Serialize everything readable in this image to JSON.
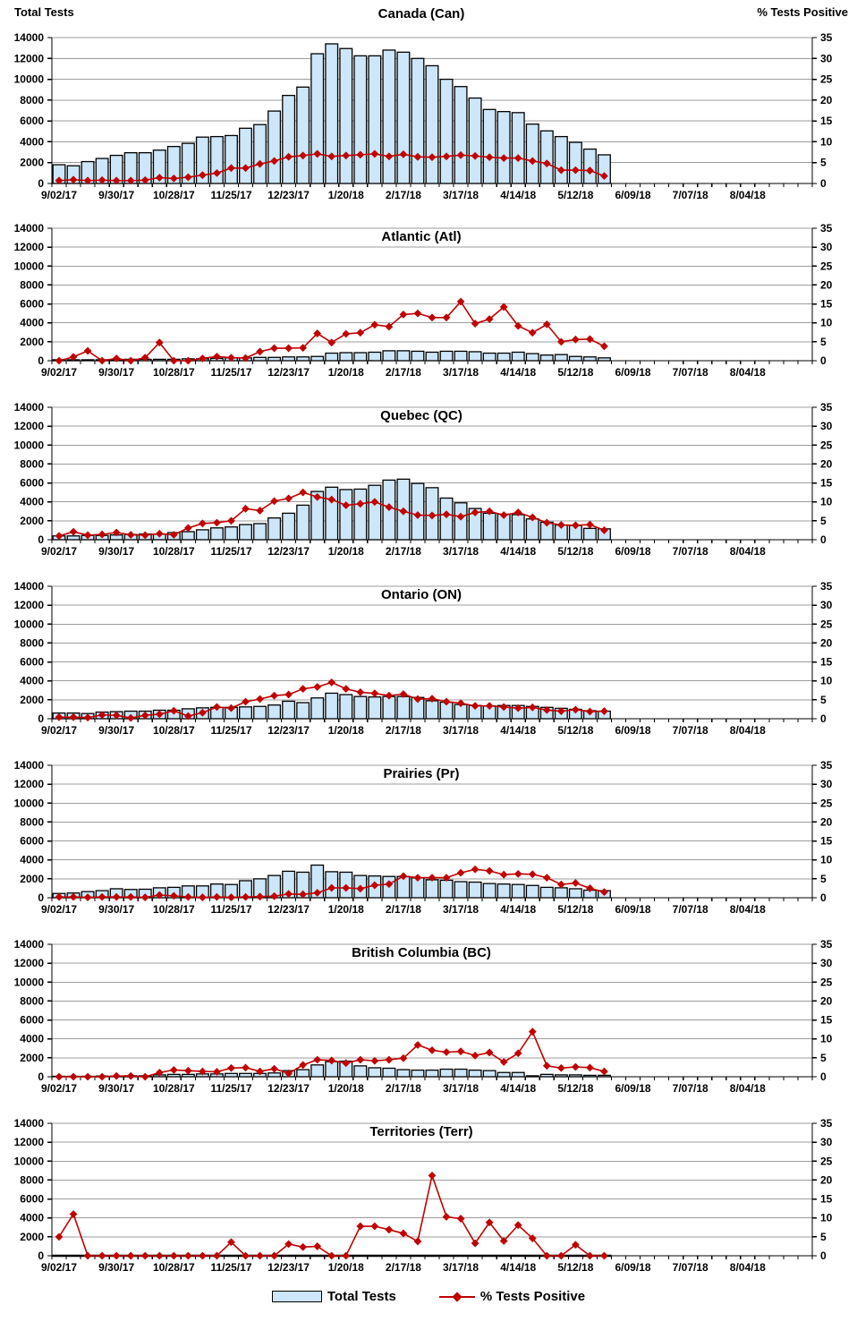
{
  "colors": {
    "bar_fill": "#CDE6F9",
    "bar_border": "#000000",
    "line": "#C00000",
    "grid": "#9C9C9C",
    "axis": "#000000",
    "text": "#000000"
  },
  "chart_data": {
    "type": "bar+line",
    "left_axis": {
      "title": "Total Tests",
      "range": [
        0,
        14000
      ],
      "ticks": [
        0,
        2000,
        4000,
        6000,
        8000,
        10000,
        12000,
        14000
      ]
    },
    "right_axis": {
      "title": "% Tests Positive",
      "range": [
        0,
        35
      ],
      "ticks": [
        0,
        5,
        10,
        15,
        20,
        25,
        30,
        35
      ]
    },
    "legend": {
      "bar_label": "Total Tests",
      "line_label": "% Tests Positive"
    },
    "x": [
      "9/02/17",
      "9/09/17",
      "9/16/17",
      "9/23/17",
      "9/30/17",
      "10/07/17",
      "10/14/17",
      "10/21/17",
      "10/28/17",
      "11/04/17",
      "11/11/17",
      "11/18/17",
      "11/25/17",
      "12/02/17",
      "12/09/17",
      "12/16/17",
      "12/23/17",
      "12/30/17",
      "1/06/18",
      "1/13/18",
      "1/20/18",
      "1/27/18",
      "2/03/18",
      "2/10/18",
      "2/17/18",
      "2/24/18",
      "3/03/18",
      "3/10/18",
      "3/17/18",
      "3/24/18",
      "3/31/18",
      "4/07/18",
      "4/14/18",
      "4/21/18",
      "4/28/18",
      "5/05/18",
      "5/12/18",
      "5/19/18",
      "5/26/18",
      "6/02/18",
      "6/09/18",
      "6/16/18",
      "6/23/18",
      "6/30/18",
      "7/07/18",
      "7/14/18",
      "7/21/18",
      "7/28/18",
      "8/04/18",
      "8/11/18",
      "8/18/18",
      "8/25/18",
      "9/01/18"
    ],
    "x_labeled_ticks": [
      "9/02/17",
      "9/30/17",
      "10/28/17",
      "11/25/17",
      "12/23/17",
      "1/20/18",
      "2/17/18",
      "3/17/18",
      "4/14/18",
      "5/12/18",
      "6/09/18",
      "7/07/18",
      "8/04/18"
    ],
    "panels": [
      {
        "title": "Canada (Can)",
        "total_tests": [
          1800,
          1700,
          2100,
          2400,
          2700,
          2950,
          2950,
          3200,
          3550,
          3850,
          4450,
          4500,
          4600,
          5300,
          5650,
          6950,
          8450,
          9250,
          12450,
          13400,
          12950,
          12250,
          12250,
          12800,
          12600,
          12000,
          11300,
          10000,
          9300,
          8200,
          7100,
          6900,
          6800,
          5700,
          5050,
          4500,
          3950,
          3300,
          2750
        ],
        "pct_positive": [
          0.7,
          0.9,
          0.7,
          0.8,
          0.7,
          0.7,
          0.8,
          1.4,
          1.2,
          1.5,
          2.0,
          2.5,
          3.7,
          3.7,
          4.7,
          5.4,
          6.4,
          6.7,
          7.1,
          6.5,
          6.7,
          6.9,
          7.1,
          6.5,
          7.0,
          6.4,
          6.3,
          6.5,
          6.8,
          6.6,
          6.3,
          6.1,
          6.1,
          5.4,
          4.8,
          3.2,
          3.2,
          3.1,
          1.8
        ]
      },
      {
        "title": "Atlantic (Atl)",
        "total_tests": [
          100,
          100,
          100,
          100,
          100,
          150,
          150,
          150,
          150,
          200,
          200,
          250,
          300,
          300,
          350,
          350,
          400,
          400,
          450,
          800,
          850,
          850,
          900,
          1050,
          1050,
          1000,
          900,
          1000,
          1000,
          950,
          800,
          800,
          900,
          750,
          600,
          650,
          450,
          400,
          300
        ],
        "pct_positive": [
          0,
          1.0,
          2.6,
          0,
          0.6,
          0,
          0.8,
          4.8,
          0,
          0,
          0.6,
          1.1,
          0.8,
          0.7,
          2.4,
          3.3,
          3.3,
          3.4,
          7.2,
          4.8,
          7.1,
          7.4,
          9.5,
          9.0,
          12.2,
          12.5,
          11.4,
          11.4,
          15.6,
          9.8,
          11.0,
          14.2,
          9.2,
          7.4,
          9.6,
          5.0,
          5.6,
          5.7,
          3.8
        ]
      },
      {
        "title": "Quebec (QC)",
        "total_tests": [
          400,
          400,
          450,
          450,
          500,
          550,
          600,
          600,
          750,
          850,
          1050,
          1250,
          1350,
          1600,
          1700,
          2300,
          2800,
          3650,
          5100,
          5550,
          5300,
          5350,
          5750,
          6300,
          6400,
          5950,
          5500,
          4400,
          3900,
          3300,
          2800,
          2700,
          2650,
          2200,
          1850,
          1550,
          1500,
          1200,
          1150
        ],
        "pct_positive": [
          1.0,
          2.1,
          1.2,
          1.4,
          1.9,
          1.3,
          1.2,
          1.6,
          1.3,
          3.1,
          4.3,
          4.5,
          5.0,
          8.2,
          7.7,
          10.2,
          10.9,
          12.5,
          11.3,
          10.6,
          9.1,
          9.5,
          10.0,
          8.6,
          7.5,
          6.5,
          6.4,
          6.7,
          6.1,
          7.2,
          7.5,
          6.5,
          7.2,
          5.9,
          4.5,
          3.9,
          3.8,
          4.0,
          2.5
        ]
      },
      {
        "title": "Ontario (ON)",
        "total_tests": [
          600,
          600,
          550,
          700,
          750,
          800,
          800,
          900,
          900,
          1050,
          1150,
          1200,
          1200,
          1250,
          1300,
          1450,
          1850,
          1700,
          2200,
          2700,
          2550,
          2350,
          2300,
          2350,
          2350,
          2250,
          1900,
          1750,
          1500,
          1400,
          1350,
          1400,
          1400,
          1300,
          1200,
          1100,
          1000,
          850,
          800
        ],
        "pct_positive": [
          0.4,
          0.4,
          0.3,
          1.0,
          0.9,
          0.2,
          0.9,
          1.2,
          2.1,
          0.7,
          1.6,
          3.1,
          2.8,
          4.5,
          5.2,
          6.1,
          6.4,
          7.9,
          8.4,
          9.6,
          7.9,
          7.0,
          6.7,
          6.1,
          6.5,
          5.2,
          5.3,
          4.5,
          4.1,
          3.4,
          3.4,
          3.1,
          2.8,
          3.0,
          2.3,
          2.0,
          2.4,
          1.9,
          2.0
        ]
      },
      {
        "title": "Prairies (Pr)",
        "total_tests": [
          450,
          500,
          650,
          750,
          950,
          875,
          900,
          1050,
          1100,
          1250,
          1250,
          1450,
          1400,
          1800,
          2000,
          2350,
          2800,
          2700,
          3450,
          2750,
          2700,
          2350,
          2300,
          2250,
          2250,
          2100,
          1900,
          1850,
          1700,
          1650,
          1500,
          1450,
          1400,
          1300,
          1100,
          1050,
          950,
          800,
          750
        ],
        "pct_positive": [
          0.2,
          0.2,
          0.1,
          0.2,
          0.2,
          0.2,
          0.1,
          0.7,
          0.5,
          0.2,
          0.1,
          0.2,
          0.1,
          0.2,
          0.3,
          0.4,
          1.0,
          0.9,
          1.3,
          2.6,
          2.6,
          2.4,
          3.3,
          3.6,
          5.7,
          5.3,
          5.3,
          5.3,
          6.6,
          7.5,
          7.1,
          6.1,
          6.3,
          6.2,
          5.3,
          3.5,
          3.9,
          2.5,
          1.5
        ]
      },
      {
        "title": "British Columbia (BC)",
        "total_tests": [
          50,
          50,
          50,
          75,
          75,
          100,
          100,
          200,
          250,
          250,
          300,
          300,
          350,
          350,
          350,
          400,
          650,
          750,
          1250,
          1600,
          1650,
          1150,
          950,
          900,
          750,
          700,
          700,
          800,
          800,
          700,
          650,
          450,
          450,
          100,
          250,
          200,
          200,
          150,
          150
        ],
        "pct_positive": [
          0,
          0,
          0,
          0,
          0.2,
          0.2,
          0,
          1.1,
          1.8,
          1.6,
          1.4,
          1.3,
          2.3,
          2.4,
          1.4,
          2.1,
          0.9,
          3.1,
          4.5,
          4.3,
          3.6,
          4.5,
          4.2,
          4.5,
          4.9,
          8.4,
          7.0,
          6.5,
          6.7,
          5.6,
          6.4,
          3.9,
          6.2,
          11.9,
          2.9,
          2.3,
          2.6,
          2.4,
          1.4
        ]
      },
      {
        "title": "Territories (Terr)",
        "total_tests": [
          0,
          0,
          0,
          0,
          0,
          0,
          0,
          0,
          0,
          0,
          0,
          0,
          0,
          0,
          0,
          0,
          0,
          0,
          0,
          0,
          0,
          0,
          0,
          0,
          0,
          0,
          0,
          0,
          0,
          0,
          0,
          0,
          0,
          0,
          0,
          0,
          0,
          0,
          0
        ],
        "pct_positive": [
          5.0,
          11.0,
          0,
          0,
          0,
          0,
          0,
          0,
          0,
          0,
          0,
          0,
          3.6,
          0,
          0,
          0,
          3.1,
          2.3,
          2.5,
          0,
          0,
          7.8,
          7.8,
          6.9,
          5.9,
          3.8,
          21.2,
          10.3,
          9.8,
          3.3,
          8.8,
          3.9,
          8.1,
          4.6,
          0,
          0,
          2.9,
          0,
          0
        ]
      }
    ]
  }
}
